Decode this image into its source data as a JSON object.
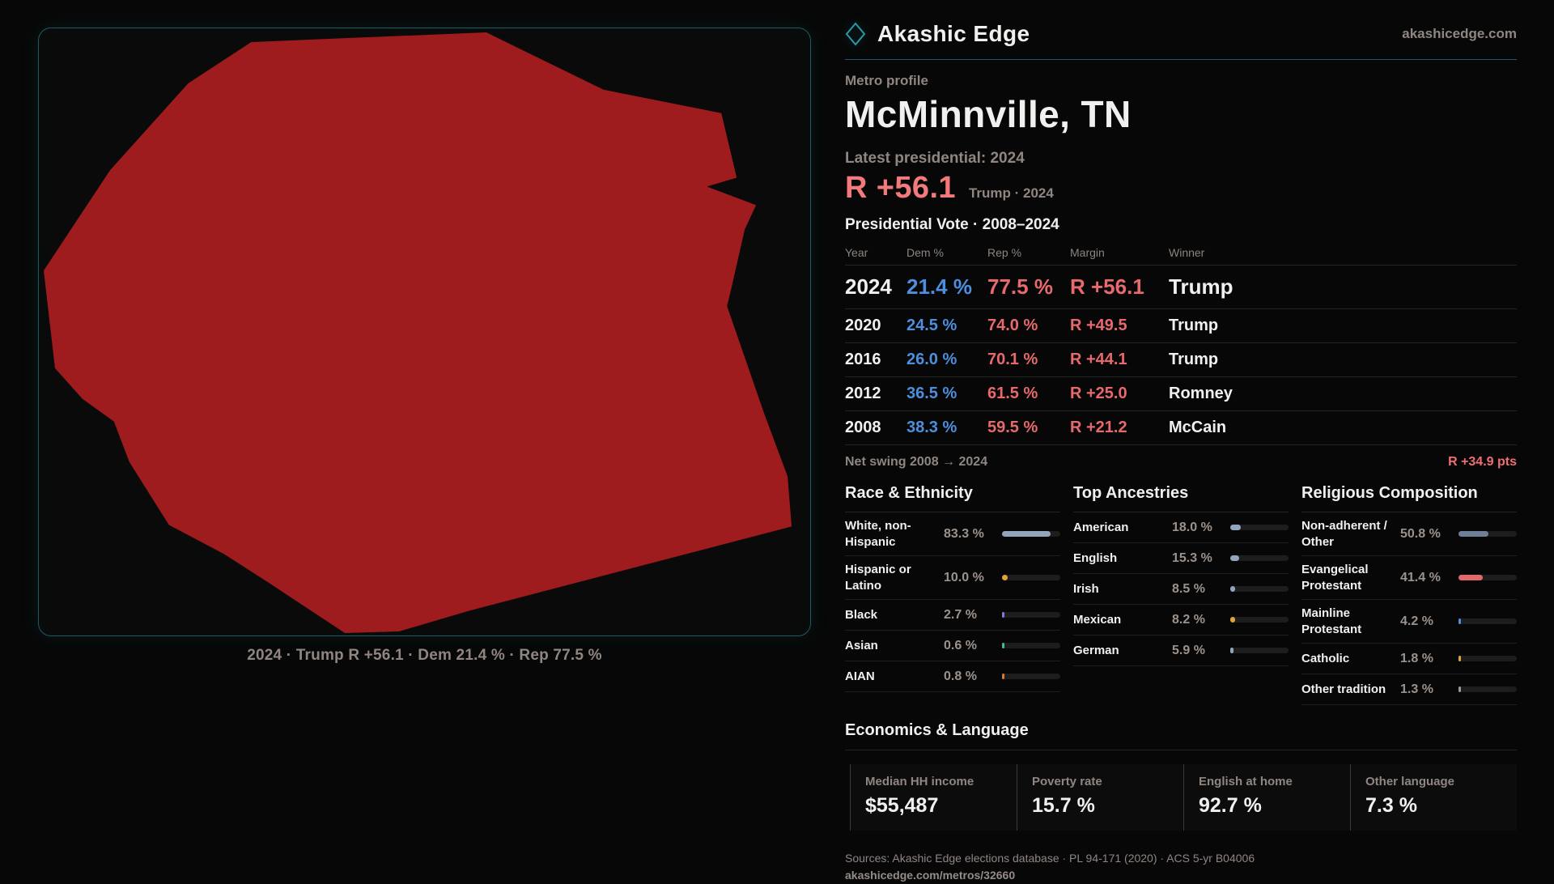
{
  "brand": {
    "name": "Akashic Edge",
    "domain": "akashicedge.com",
    "accent": "#2a9aa8"
  },
  "map": {
    "caption": "2024 · Trump R +56.1 · Dem 21.4 % · Rep 77.5 %",
    "fill": "#9e1c1d"
  },
  "profile": {
    "kicker": "Metro profile",
    "title": "McMinnville, TN",
    "latest_label": "Latest presidential: 2024",
    "margin_big": "R +56.1",
    "margin_note": "Trump · 2024",
    "table_title": "Presidential Vote · 2008–2024"
  },
  "table": {
    "headers": [
      "Year",
      "Dem %",
      "Rep %",
      "Margin",
      "Winner"
    ],
    "rows": [
      {
        "year": "2024",
        "dem": "21.4 %",
        "rep": "77.5 %",
        "margin": "R +56.1",
        "winner": "Trump",
        "highlight": true
      },
      {
        "year": "2020",
        "dem": "24.5 %",
        "rep": "74.0 %",
        "margin": "R +49.5",
        "winner": "Trump",
        "highlight": false
      },
      {
        "year": "2016",
        "dem": "26.0 %",
        "rep": "70.1 %",
        "margin": "R +44.1",
        "winner": "Trump",
        "highlight": false
      },
      {
        "year": "2012",
        "dem": "36.5 %",
        "rep": "61.5 %",
        "margin": "R +25.0",
        "winner": "Romney",
        "highlight": false
      },
      {
        "year": "2008",
        "dem": "38.3 %",
        "rep": "59.5 %",
        "margin": "R +21.2",
        "winner": "McCain",
        "highlight": false
      }
    ],
    "net_swing_label": "Net swing 2008 → 2024",
    "net_swing_value": "R +34.9 pts"
  },
  "panels": [
    {
      "title": "Race & Ethnicity",
      "rows": [
        {
          "label": "White, non-Hispanic",
          "value": "83.3 %",
          "pct": 83.3,
          "color": "#93a5bc"
        },
        {
          "label": "Hispanic or Latino",
          "value": "10.0 %",
          "pct": 10.0,
          "color": "#e2a23b"
        },
        {
          "label": "Black",
          "value": "2.7 %",
          "pct": 2.7,
          "color": "#8677e0"
        },
        {
          "label": "Asian",
          "value": "0.6 %",
          "pct": 0.6,
          "color": "#3fbf8f"
        },
        {
          "label": "AIAN",
          "value": "0.8 %",
          "pct": 0.8,
          "color": "#d97a2e"
        }
      ]
    },
    {
      "title": "Top Ancestries",
      "rows": [
        {
          "label": "American",
          "value": "18.0 %",
          "pct": 18.0,
          "color": "#93a5bc"
        },
        {
          "label": "English",
          "value": "15.3 %",
          "pct": 15.3,
          "color": "#93a5bc"
        },
        {
          "label": "Irish",
          "value": "8.5 %",
          "pct": 8.5,
          "color": "#93a5bc"
        },
        {
          "label": "Mexican",
          "value": "8.2 %",
          "pct": 8.2,
          "color": "#e2a23b"
        },
        {
          "label": "German",
          "value": "5.9 %",
          "pct": 5.9,
          "color": "#93a5bc"
        }
      ]
    },
    {
      "title": "Religious Composition",
      "rows": [
        {
          "label": "Non-adherent / Other",
          "value": "50.8 %",
          "pct": 50.8,
          "color": "#6e8098"
        },
        {
          "label": "Evangelical Protestant",
          "value": "41.4 %",
          "pct": 41.4,
          "color": "#e0696c"
        },
        {
          "label": "Mainline Protestant",
          "value": "4.2 %",
          "pct": 4.2,
          "color": "#4d8fdd"
        },
        {
          "label": "Catholic",
          "value": "1.8 %",
          "pct": 1.8,
          "color": "#e2a23b"
        },
        {
          "label": "Other tradition",
          "value": "1.3 %",
          "pct": 1.3,
          "color": "#9a9a9a"
        }
      ]
    }
  ],
  "economics": {
    "title": "Economics & Language",
    "stats": [
      {
        "label": "Median HH income",
        "value": "$55,487"
      },
      {
        "label": "Poverty rate",
        "value": "15.7 %"
      },
      {
        "label": "English at home",
        "value": "92.7 %"
      },
      {
        "label": "Other language",
        "value": "7.3 %"
      }
    ]
  },
  "footer": {
    "sources": "Sources: Akashic Edge elections database · PL 94-171 (2020) · ACS 5-yr B04006",
    "permalink": "akashicedge.com/metros/32660"
  }
}
